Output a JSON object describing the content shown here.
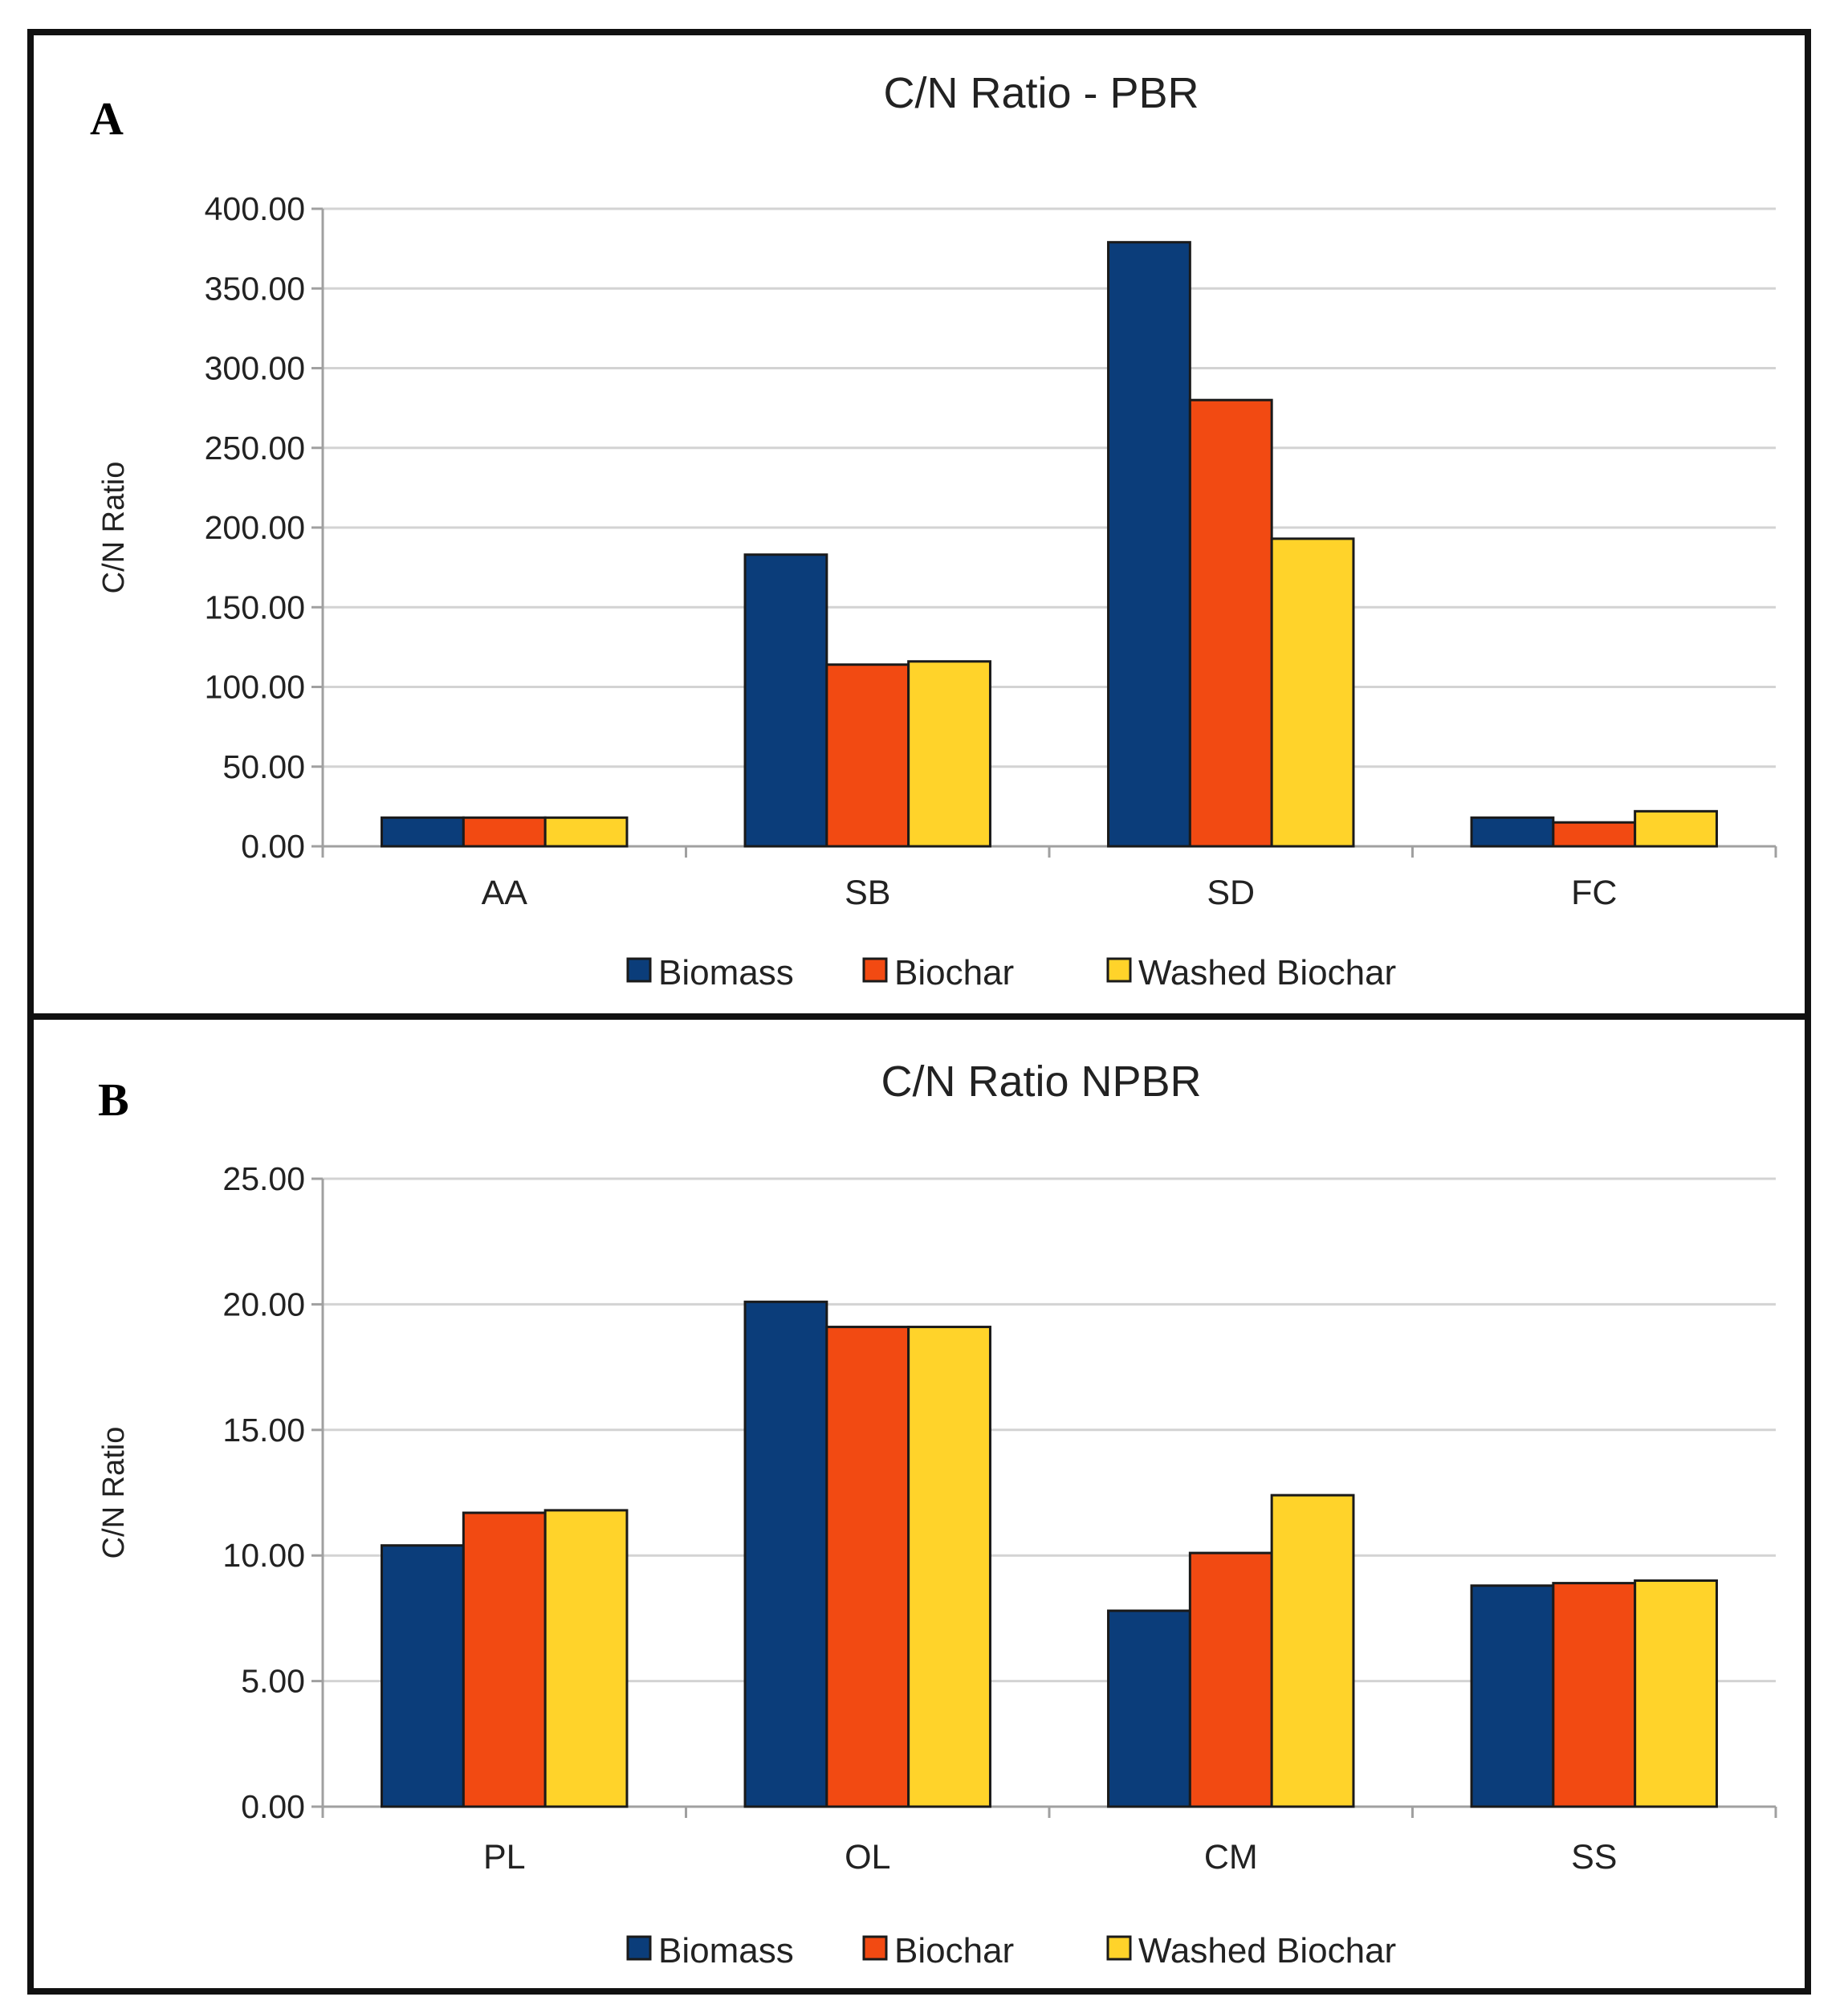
{
  "colors": {
    "biomass": "#0b3d7a",
    "biochar": "#f24a12",
    "washed": "#ffd32a",
    "grid": "#d3d3d3",
    "axis": "#a0a0a0"
  },
  "panels": [
    {
      "letter": "A"
    },
    {
      "letter": "B"
    }
  ],
  "chart_data": [
    {
      "type": "bar",
      "title": "C/N Ratio - PBR",
      "xlabel": "",
      "ylabel": "C/N Ratio",
      "categories": [
        "AA",
        "SB",
        "SD",
        "FC"
      ],
      "ylim": [
        0,
        400
      ],
      "yticks": [
        "0.00",
        "50.00",
        "100.00",
        "150.00",
        "200.00",
        "250.00",
        "300.00",
        "350.00",
        "400.00"
      ],
      "grid": true,
      "legend": "bottom-center",
      "series": [
        {
          "name": "Biomass",
          "values": [
            18,
            183,
            379,
            18
          ]
        },
        {
          "name": "Biochar",
          "values": [
            18,
            114,
            280,
            15
          ]
        },
        {
          "name": "Washed Biochar",
          "values": [
            18,
            116,
            193,
            22
          ]
        }
      ]
    },
    {
      "type": "bar",
      "title": "C/N Ratio NPBR",
      "xlabel": "",
      "ylabel": "C/N Ratio",
      "categories": [
        "PL",
        "OL",
        "CM",
        "SS"
      ],
      "ylim": [
        0,
        25
      ],
      "yticks": [
        "0.00",
        "5.00",
        "10.00",
        "15.00",
        "20.00",
        "25.00"
      ],
      "grid": true,
      "legend": "bottom-center",
      "series": [
        {
          "name": "Biomass",
          "values": [
            10.4,
            20.1,
            7.8,
            8.8
          ]
        },
        {
          "name": "Biochar",
          "values": [
            11.7,
            19.1,
            10.1,
            8.9
          ]
        },
        {
          "name": "Washed Biochar",
          "values": [
            11.8,
            19.1,
            12.4,
            9.0
          ]
        }
      ]
    }
  ]
}
